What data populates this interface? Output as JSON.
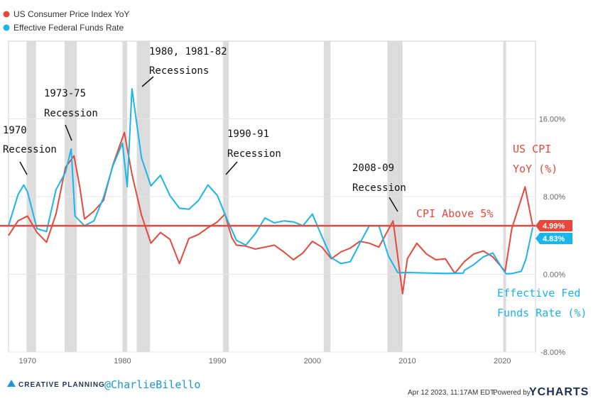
{
  "chart_data": {
    "type": "line",
    "x_range": [
      1968,
      2023.5
    ],
    "ylim": [
      -8,
      24
    ],
    "y_ticks": [
      {
        "value": 16,
        "label": "16.00%"
      },
      {
        "value": 8,
        "label": "8.00%"
      },
      {
        "value": 0,
        "label": "0.00%"
      },
      {
        "value": -8,
        "label": "-8.00%"
      }
    ],
    "x_ticks": [
      {
        "value": 1970,
        "label": "1970"
      },
      {
        "value": 1980,
        "label": "1980"
      },
      {
        "value": 1990,
        "label": "1990"
      },
      {
        "value": 2000,
        "label": "2000"
      },
      {
        "value": 2010,
        "label": "2010"
      },
      {
        "value": 2020,
        "label": "2020"
      }
    ],
    "recessions": [
      [
        1969.9,
        1970.9
      ],
      [
        1973.9,
        1975.2
      ],
      [
        1980.0,
        1980.5
      ],
      [
        1981.5,
        1982.9
      ],
      [
        1990.6,
        1991.2
      ],
      [
        2001.2,
        2001.9
      ],
      [
        2007.9,
        2009.5
      ],
      [
        2020.1,
        2020.4
      ]
    ],
    "reference_line": {
      "value": 5,
      "label": "CPI Above 5%"
    },
    "series": [
      {
        "name": "US Consumer Price Index YoY",
        "color": "#e8483b",
        "last_value": "4.99%",
        "points": [
          [
            1968,
            4.0
          ],
          [
            1969,
            5.5
          ],
          [
            1970,
            6.0
          ],
          [
            1971,
            4.3
          ],
          [
            1972,
            3.3
          ],
          [
            1973,
            6.2
          ],
          [
            1974,
            11.0
          ],
          [
            1974.9,
            12.2
          ],
          [
            1975.5,
            9.0
          ],
          [
            1976,
            5.7
          ],
          [
            1977,
            6.5
          ],
          [
            1978,
            7.6
          ],
          [
            1979,
            11.3
          ],
          [
            1980.2,
            14.6
          ],
          [
            1981,
            10.3
          ],
          [
            1982,
            6.1
          ],
          [
            1983,
            3.2
          ],
          [
            1984,
            4.3
          ],
          [
            1985,
            3.6
          ],
          [
            1986,
            1.1
          ],
          [
            1987,
            3.7
          ],
          [
            1988,
            4.1
          ],
          [
            1989,
            4.8
          ],
          [
            1990,
            5.4
          ],
          [
            1990.8,
            6.2
          ],
          [
            1991.5,
            3.8
          ],
          [
            1992,
            3.0
          ],
          [
            1993,
            2.9
          ],
          [
            1994,
            2.6
          ],
          [
            1995,
            2.8
          ],
          [
            1996,
            3.0
          ],
          [
            1997,
            2.3
          ],
          [
            1998,
            1.5
          ],
          [
            1999,
            2.2
          ],
          [
            2000,
            3.4
          ],
          [
            2001,
            2.8
          ],
          [
            2002,
            1.6
          ],
          [
            2003,
            2.3
          ],
          [
            2004,
            2.7
          ],
          [
            2005,
            3.4
          ],
          [
            2006,
            3.2
          ],
          [
            2007,
            2.8
          ],
          [
            2008.5,
            5.5
          ],
          [
            2009.5,
            -2.0
          ],
          [
            2010,
            1.6
          ],
          [
            2011,
            3.2
          ],
          [
            2012,
            2.1
          ],
          [
            2013,
            1.5
          ],
          [
            2014,
            1.6
          ],
          [
            2015,
            0.1
          ],
          [
            2016,
            1.3
          ],
          [
            2017,
            2.1
          ],
          [
            2018,
            2.4
          ],
          [
            2019,
            1.8
          ],
          [
            2020.3,
            0.3
          ],
          [
            2021,
            4.7
          ],
          [
            2022.4,
            9.0
          ],
          [
            2023.2,
            4.99
          ]
        ]
      },
      {
        "name": "Effective Federal Funds Rate",
        "color": "#1ab5ea",
        "last_value": "4.83%",
        "points": [
          [
            1968,
            5.0
          ],
          [
            1969,
            8.2
          ],
          [
            1969.6,
            9.2
          ],
          [
            1970,
            8.5
          ],
          [
            1971,
            4.7
          ],
          [
            1972,
            4.4
          ],
          [
            1973,
            8.7
          ],
          [
            1974,
            10.5
          ],
          [
            1974.6,
            12.9
          ],
          [
            1975,
            6.0
          ],
          [
            1976,
            5.0
          ],
          [
            1977,
            5.5
          ],
          [
            1978,
            7.9
          ],
          [
            1979,
            11.2
          ],
          [
            1980,
            13.5
          ],
          [
            1980.5,
            9.0
          ],
          [
            1981,
            19.1
          ],
          [
            1982,
            12.0
          ],
          [
            1983,
            9.1
          ],
          [
            1984,
            10.2
          ],
          [
            1985,
            8.1
          ],
          [
            1986,
            6.8
          ],
          [
            1987,
            6.7
          ],
          [
            1988,
            7.6
          ],
          [
            1989,
            9.2
          ],
          [
            1990,
            8.1
          ],
          [
            1991,
            5.7
          ],
          [
            1992,
            3.5
          ],
          [
            1993,
            3.0
          ],
          [
            1994,
            4.2
          ],
          [
            1995,
            5.8
          ],
          [
            1996,
            5.3
          ],
          [
            1997,
            5.5
          ],
          [
            1998,
            5.4
          ],
          [
            1999,
            5.0
          ],
          [
            2000,
            6.2
          ],
          [
            2001,
            3.9
          ],
          [
            2002,
            1.7
          ],
          [
            2003,
            1.1
          ],
          [
            2004,
            1.3
          ],
          [
            2005,
            3.2
          ],
          [
            2006,
            5.0
          ],
          [
            2007,
            5.0
          ],
          [
            2008,
            1.9
          ],
          [
            2009,
            0.16
          ],
          [
            2010,
            0.18
          ],
          [
            2012,
            0.14
          ],
          [
            2014,
            0.09
          ],
          [
            2015.9,
            0.13
          ],
          [
            2016,
            0.4
          ],
          [
            2017,
            1.0
          ],
          [
            2018,
            1.8
          ],
          [
            2019,
            2.2
          ],
          [
            2020,
            0.6
          ],
          [
            2020.4,
            0.05
          ],
          [
            2021,
            0.08
          ],
          [
            2022,
            0.3
          ],
          [
            2022.5,
            1.6
          ],
          [
            2023.2,
            4.83
          ]
        ]
      }
    ],
    "annotations": [
      {
        "lines": [
          "1970",
          "Recession"
        ]
      },
      {
        "lines": [
          "1973-75",
          "Recession"
        ]
      },
      {
        "lines": [
          "1980, 1981-82",
          "Recessions"
        ]
      },
      {
        "lines": [
          "1990-91",
          "Recession"
        ]
      },
      {
        "lines": [
          "2008-09",
          "Recession"
        ]
      }
    ],
    "series_labels": {
      "cpi": [
        "US CPI",
        "YoY (%)"
      ],
      "ffr": [
        "Effective Fed",
        "Funds Rate (%)"
      ]
    }
  },
  "footer": {
    "brand": "CREATIVE PLANNING",
    "handle": "@CharlieBilello",
    "timestamp": "Apr 12 2023, 11:17AM EDT.",
    "powered_by": "Powered by",
    "ycharts": "YCHARTS"
  }
}
